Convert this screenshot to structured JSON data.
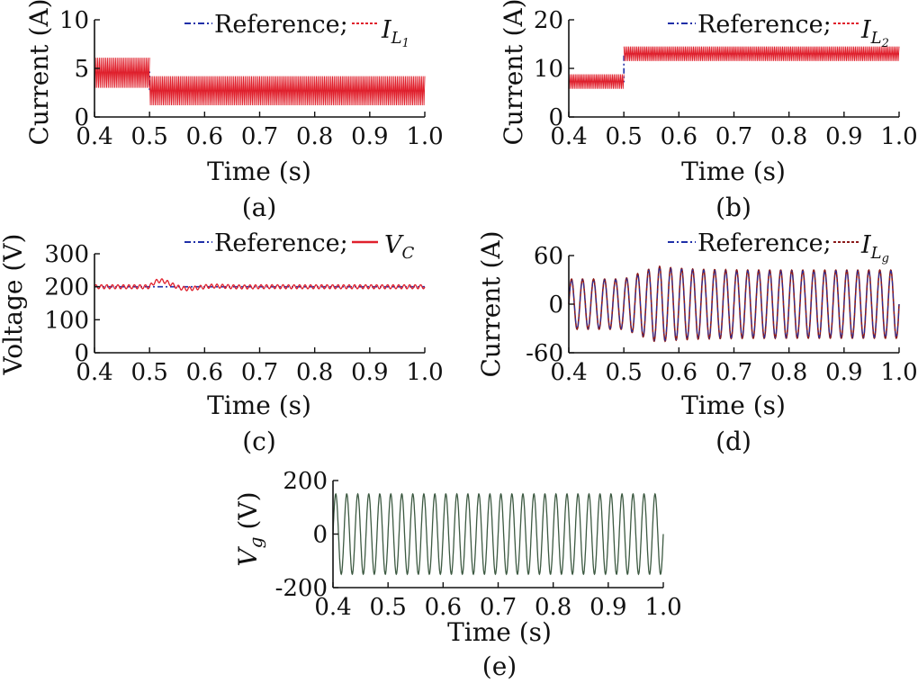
{
  "figure": {
    "time_label": "Time (s)",
    "colors": {
      "reference": "#1f2fa8",
      "measured": "#e0202c",
      "grid_current": "#8b1a1a",
      "grid_voltage": "#3d5a42",
      "axis": "#111111"
    }
  },
  "chart_data": [
    {
      "id": "a",
      "type": "line",
      "caption": "(a)",
      "ylabel": "Current (A)",
      "xlim": [
        0.4,
        1.0
      ],
      "ylim": [
        0,
        10
      ],
      "xticks": [
        "0.4",
        "0.5",
        "0.6",
        "0.7",
        "0.8",
        "0.9",
        "1.0"
      ],
      "yticks": [
        "0",
        "5",
        "10"
      ],
      "legend": {
        "position": "top-right",
        "reference": "Reference;",
        "measured_base": "I",
        "measured_sub": "L",
        "measured_subsub": "1"
      },
      "series": [
        {
          "name": "Reference",
          "style": "dash-dot",
          "points": [
            [
              0.4,
              4.6
            ],
            [
              0.5,
              4.6
            ],
            [
              0.5,
              2.7
            ],
            [
              1.0,
              2.7
            ]
          ]
        },
        {
          "name": "I_L1",
          "style": "ripple-band",
          "segments": [
            {
              "x": [
                0.4,
                0.5
              ],
              "center": 4.6,
              "low": 3.0,
              "high": 6.1
            },
            {
              "x": [
                0.5,
                1.0
              ],
              "center": 2.7,
              "low": 1.2,
              "high": 4.2
            }
          ]
        }
      ]
    },
    {
      "id": "b",
      "type": "line",
      "caption": "(b)",
      "ylabel": "Current (A)",
      "xlim": [
        0.4,
        1.0
      ],
      "ylim": [
        0,
        20
      ],
      "xticks": [
        "0.4",
        "0.5",
        "0.6",
        "0.7",
        "0.8",
        "0.9",
        "1.0"
      ],
      "yticks": [
        "0",
        "10",
        "20"
      ],
      "legend": {
        "position": "top-right",
        "reference": "Reference;",
        "measured_base": "I",
        "measured_sub": "L",
        "measured_subsub": "2"
      },
      "series": [
        {
          "name": "Reference",
          "style": "dash-dot",
          "points": [
            [
              0.4,
              7.3
            ],
            [
              0.5,
              7.3
            ],
            [
              0.5,
              13.0
            ],
            [
              1.0,
              13.0
            ]
          ]
        },
        {
          "name": "I_L2",
          "style": "ripple-band",
          "segments": [
            {
              "x": [
                0.4,
                0.5
              ],
              "center": 7.3,
              "low": 5.8,
              "high": 8.8
            },
            {
              "x": [
                0.5,
                1.0
              ],
              "center": 13.0,
              "low": 11.5,
              "high": 14.5
            }
          ]
        }
      ]
    },
    {
      "id": "c",
      "type": "line",
      "caption": "(c)",
      "ylabel": "Voltage (V)",
      "xlim": [
        0.4,
        1.0
      ],
      "ylim": [
        0,
        300
      ],
      "xticks": [
        "0.4",
        "0.5",
        "0.6",
        "0.7",
        "0.8",
        "0.9",
        "1.0"
      ],
      "yticks": [
        "0",
        "100",
        "200",
        "300"
      ],
      "legend": {
        "position": "top-right",
        "reference": "Reference;",
        "measured_base": "V",
        "measured_sub": "C",
        "measured_subsub": ""
      },
      "series": [
        {
          "name": "Reference",
          "style": "dash-dot",
          "points": [
            [
              0.4,
              200
            ],
            [
              1.0,
              200
            ]
          ]
        },
        {
          "name": "V_C",
          "style": "damped-oscillation",
          "base": 200,
          "ripple": 6,
          "ripple_freq": 100,
          "events": [
            {
              "start": 0.5,
              "amp": 30,
              "freq": 10,
              "decay": 0.045
            }
          ]
        }
      ]
    },
    {
      "id": "d",
      "type": "line",
      "caption": "(d)",
      "ylabel": "Current (A)",
      "xlim": [
        0.4,
        1.0
      ],
      "ylim": [
        -60,
        60
      ],
      "xticks": [
        "0.4",
        "0.5",
        "0.6",
        "0.7",
        "0.8",
        "0.9",
        "1.0"
      ],
      "yticks": [
        "-60",
        "0",
        "60"
      ],
      "legend": {
        "position": "top-right",
        "reference": "Reference;",
        "measured_base": "I",
        "measured_sub": "L",
        "measured_subsub": "g"
      },
      "series": [
        {
          "name": "Reference",
          "style": "dash-dot",
          "sine": {
            "freq": 50,
            "amp_before": 30,
            "amp_after": 41,
            "switch": 0.5,
            "peak_after": 46,
            "peak_at": 0.56
          }
        },
        {
          "name": "I_Lg",
          "style": "solid",
          "sine": {
            "freq": 50,
            "amp_before": 31,
            "amp_after": 42,
            "switch": 0.5,
            "peak_after": 47,
            "peak_at": 0.56
          }
        }
      ]
    },
    {
      "id": "e",
      "type": "line",
      "caption": "(e)",
      "ylabel_base": "V",
      "ylabel_sub": "g",
      "ylabel_unit": "(V)",
      "xlim": [
        0.4,
        1.0
      ],
      "ylim": [
        -200,
        200
      ],
      "xticks": [
        "0.4",
        "0.5",
        "0.6",
        "0.7",
        "0.8",
        "0.9",
        "1.0"
      ],
      "yticks": [
        "-200",
        "0",
        "200"
      ],
      "series": [
        {
          "name": "V_g",
          "style": "solid",
          "sine": {
            "freq": 50,
            "amp_before": 150,
            "amp_after": 150,
            "switch": 0.5
          }
        }
      ]
    }
  ]
}
